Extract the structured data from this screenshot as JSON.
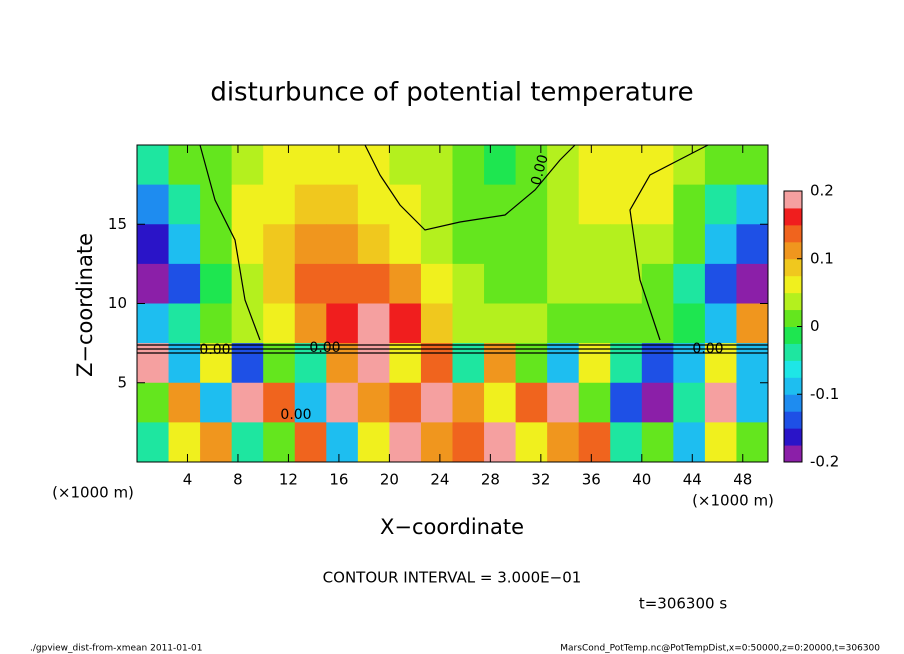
{
  "chart_data": {
    "type": "heatmap",
    "title": "disturbunce of potential temperature",
    "x_label": "X−coordinate",
    "y_label": "Z−coordinate",
    "x_unit_left": "(×1000 m)",
    "x_unit_right": "(×1000 m)",
    "contour_interval": "CONTOUR INTERVAL = 3.000E−01",
    "time_label": "t=306300 s",
    "footer_left": "./gpview_dist-from-xmean  2011-01-01",
    "footer_right": "MarsCond_PotTemp.nc@PotTempDist,x=0:50000,z=0:20000,t=306300",
    "contour_labels": [
      "0.00",
      "0.00",
      "0.00",
      "0.00",
      "0.00"
    ],
    "xlim": [
      0,
      50
    ],
    "ylim": [
      0,
      20
    ],
    "xticks": [
      4,
      8,
      12,
      16,
      20,
      24,
      28,
      32,
      36,
      40,
      44,
      48
    ],
    "yticks": [
      5,
      10,
      15
    ],
    "z": [
      [
        -0.05,
        0.0,
        0.02,
        0.04,
        0.06,
        0.07,
        0.06,
        0.05,
        0.04,
        0.03,
        0.0,
        -0.01,
        0.01,
        0.03,
        0.05,
        0.06,
        0.06,
        0.04,
        0.02,
        0.0
      ],
      [
        -0.12,
        -0.05,
        0.02,
        0.05,
        0.07,
        0.09,
        0.08,
        0.06,
        0.05,
        0.03,
        0.01,
        0.0,
        0.02,
        0.04,
        0.05,
        0.06,
        0.05,
        0.02,
        -0.03,
        -0.1
      ],
      [
        -0.17,
        -0.1,
        0.0,
        0.05,
        0.08,
        0.12,
        0.12,
        0.09,
        0.06,
        0.03,
        0.02,
        0.01,
        0.02,
        0.03,
        0.04,
        0.04,
        0.03,
        0.0,
        -0.08,
        -0.15
      ],
      [
        -0.2,
        -0.14,
        -0.02,
        0.04,
        0.08,
        0.13,
        0.14,
        0.15,
        0.1,
        0.05,
        0.03,
        0.02,
        0.02,
        0.03,
        0.03,
        0.03,
        0.02,
        -0.04,
        -0.14,
        -0.19
      ],
      [
        -0.08,
        -0.05,
        0.02,
        0.04,
        0.07,
        0.12,
        0.17,
        0.19,
        0.16,
        0.08,
        0.04,
        0.03,
        0.03,
        0.02,
        0.02,
        0.02,
        0.01,
        -0.02,
        -0.08,
        0.1
      ],
      [
        0.2,
        -0.1,
        0.05,
        -0.15,
        0.0,
        -0.05,
        0.1,
        0.2,
        0.05,
        0.15,
        -0.05,
        0.1,
        0.0,
        -0.1,
        0.05,
        -0.05,
        -0.15,
        -0.1,
        0.05,
        -0.1
      ],
      [
        0.0,
        0.1,
        -0.1,
        0.2,
        0.15,
        -0.1,
        0.2,
        0.1,
        0.15,
        0.2,
        0.1,
        0.05,
        0.15,
        0.2,
        0.0,
        -0.15,
        -0.2,
        -0.05,
        0.2,
        -0.1
      ],
      [
        -0.05,
        0.05,
        0.1,
        -0.05,
        0.0,
        0.15,
        -0.1,
        0.05,
        0.2,
        0.1,
        0.15,
        0.2,
        0.05,
        0.1,
        0.15,
        -0.05,
        0.0,
        -0.1,
        0.05,
        0.0
      ]
    ],
    "colorbar": {
      "lim": [
        -0.2,
        0.2
      ],
      "ticks": [
        -0.2,
        -0.1,
        0,
        0.1,
        0.2
      ],
      "colors": [
        "#8b1fa8",
        "#2a14c8",
        "#1e50e6",
        "#1e8cf0",
        "#1ebef0",
        "#1ee6e6",
        "#1ee6a0",
        "#1ee650",
        "#64e61e",
        "#b4f01e",
        "#f0f01e",
        "#f0c81e",
        "#f0961e",
        "#f0641e",
        "#f01e1e",
        "#f5a0a0"
      ]
    }
  }
}
